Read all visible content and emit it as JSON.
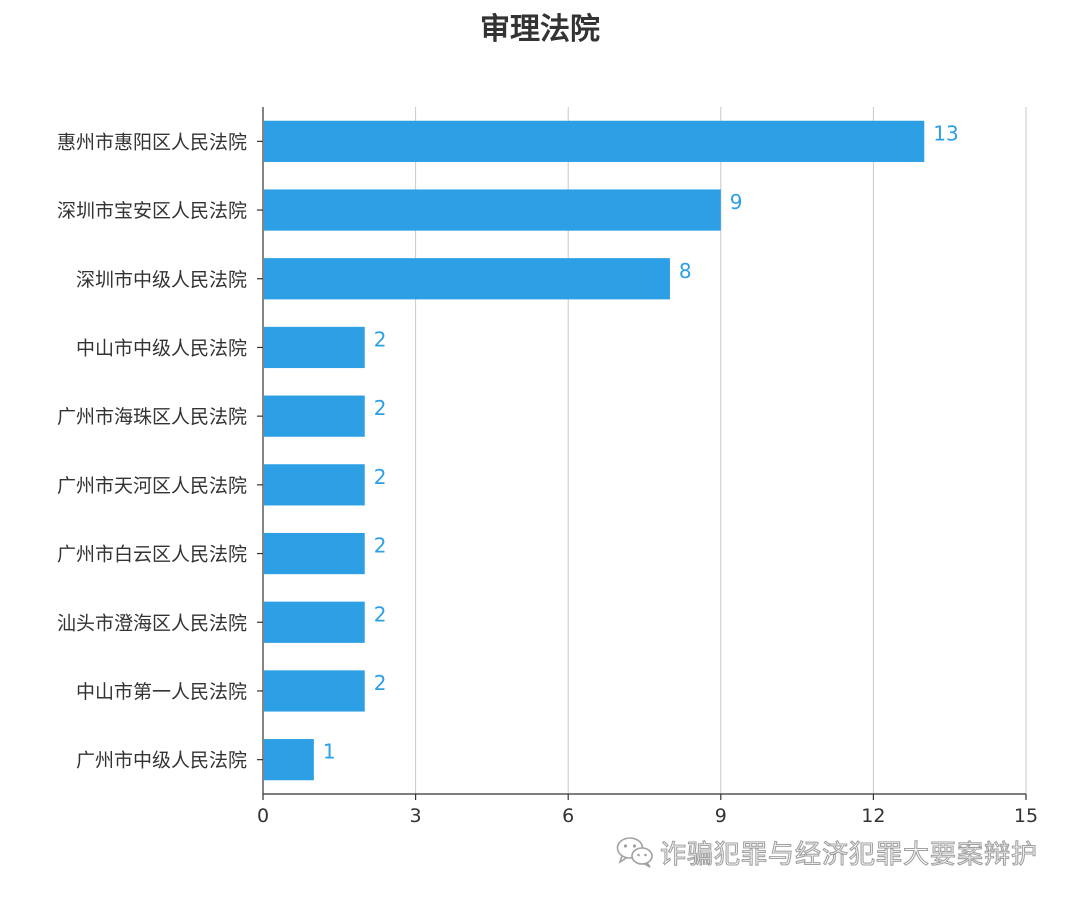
{
  "colors": {
    "bar": "#2c9fe5",
    "label": "#2c9fe5",
    "axis": "#333333",
    "grid": "#c8c8c8",
    "text": "#333333"
  },
  "watermark": {
    "text": "诈骗犯罪与经济犯罪大要案辩护",
    "icon": "wechat-icon"
  },
  "chart_data": {
    "type": "bar",
    "orientation": "horizontal",
    "title": "审理法院",
    "categories": [
      "惠州市惠阳区人民法院",
      "深圳市宝安区人民法院",
      "深圳市中级人民法院",
      "中山市中级人民法院",
      "广州市海珠区人民法院",
      "广州市天河区人民法院",
      "广州市白云区人民法院",
      "汕头市澄海区人民法院",
      "中山市第一人民法院",
      "广州市中级人民法院"
    ],
    "values": [
      13,
      9,
      8,
      2,
      2,
      2,
      2,
      2,
      2,
      1
    ],
    "xlim": [
      0,
      15
    ],
    "xticks": [
      0,
      3,
      6,
      9,
      12,
      15
    ],
    "grid": "vertical",
    "legend": "none"
  }
}
